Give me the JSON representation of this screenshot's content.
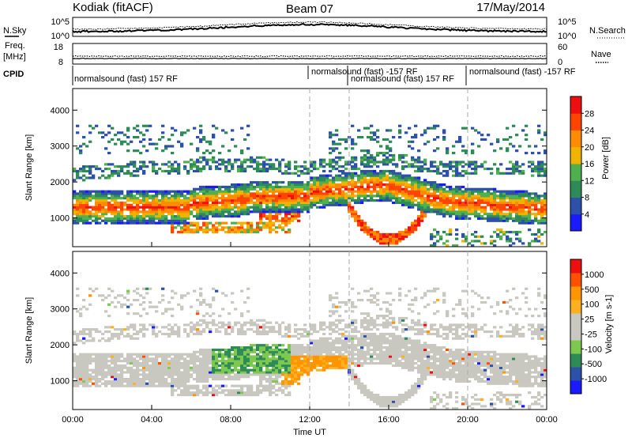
{
  "header": {
    "station": "Kodiak (fitACF)",
    "beam": "Beam 07",
    "date": "17/May/2014"
  },
  "top_panel": {
    "left_label": "N.Sky",
    "right_label": "N.Search",
    "left_ticks": [
      "10^5",
      "10^0"
    ],
    "right_ticks": [
      "10^5",
      "10^0"
    ]
  },
  "freq_panel": {
    "left_label_1": "Freq.",
    "left_label_2": "[MHz]",
    "right_label": "Nave",
    "left_ticks": [
      "18",
      "8"
    ],
    "right_ticks": [
      "60",
      "0"
    ]
  },
  "cpid": {
    "label": "CPID",
    "segments": [
      {
        "text": "normalsound (fast) 157 RF"
      },
      {
        "text": "normalsound (fast) -157 RF"
      },
      {
        "text": "normalsound (fast) 157 RF"
      },
      {
        "text": "normalsound (fast) -157 RF"
      }
    ]
  },
  "colors": {
    "power": [
      "#1a1aff",
      "#2d50a8",
      "#2e8b57",
      "#50b050",
      "#f0b400",
      "#ff8c00",
      "#ff4500",
      "#ee1010"
    ],
    "velocity": [
      "#ee1010",
      "#ff5000",
      "#ff9500",
      "#ffb020",
      "#c8c8c0",
      "#c8c8c0",
      "#7ec850",
      "#2e8b57",
      "#2d50a8",
      "#1a1aff"
    ]
  },
  "chart_data": [
    {
      "type": "heatmap",
      "ylabel": "Slant Range [km]",
      "yticks": [
        1000,
        2000,
        3000,
        4000
      ],
      "ylim": [
        200,
        4600
      ],
      "colorbar_label": "Power [dB]",
      "colorbar_ticks": [
        "4",
        "8",
        "12",
        "16",
        "20",
        "24",
        "28"
      ]
    },
    {
      "type": "heatmap",
      "ylabel": "Slant Range [km]",
      "yticks": [
        1000,
        2000,
        3000,
        4000
      ],
      "ylim": [
        200,
        4600
      ],
      "xlabel": "Time UT",
      "xticks": [
        "00:00",
        "04:00",
        "08:00",
        "12:00",
        "16:00",
        "20:00",
        "00:00"
      ],
      "colorbar_label": "Velocity [m s-1]",
      "colorbar_ticks": [
        "1000",
        "500",
        "100",
        "25",
        "-25",
        "-100",
        "-500",
        "-1000"
      ]
    }
  ]
}
